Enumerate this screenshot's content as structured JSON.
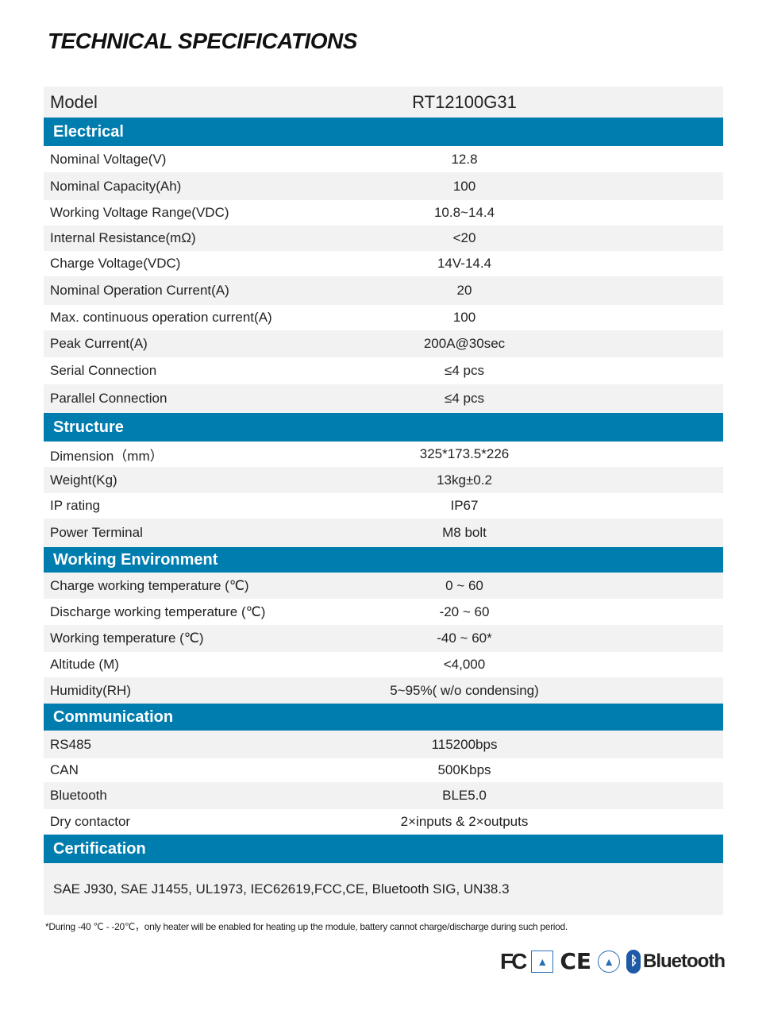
{
  "title": "TECHNICAL SPECIFICATIONS",
  "model": {
    "label": "Model",
    "value": "RT12100G31"
  },
  "sections": {
    "electrical": {
      "title": "Electrical",
      "rows": [
        {
          "label": "Nominal Voltage(V)",
          "value": "12.8"
        },
        {
          "label": "Nominal Capacity(Ah)",
          "value": "100"
        },
        {
          "label": "Working Voltage Range(VDC)",
          "value": "10.8~14.4"
        },
        {
          "label": "Internal Resistance(mΩ)",
          "value": "<20"
        },
        {
          "label": "Charge Voltage(VDC)",
          "value": "14V-14.4"
        },
        {
          "label": "Nominal Operation Current(A)",
          "value": "20"
        },
        {
          "label": "Max. continuous operation  current(A)",
          "value": "100"
        },
        {
          "label": "Peak Current(A)",
          "value": "200A@30sec"
        },
        {
          "label": "Serial Connection",
          "value": "≤4 pcs"
        },
        {
          "label": "Parallel Connection",
          "value": "≤4 pcs"
        }
      ]
    },
    "structure": {
      "title": "Structure",
      "rows": [
        {
          "label": "Dimension（mm）",
          "value": "325*173.5*226"
        },
        {
          "label": "Weight(Kg)",
          "value": "13kg±0.2"
        },
        {
          "label": "IP rating",
          "value": "IP67"
        },
        {
          "label": "Power Terminal",
          "value": "M8 bolt"
        }
      ]
    },
    "environment": {
      "title": "Working Environment",
      "rows": [
        {
          "label": "Charge working temperature (℃)",
          "value": "0 ~ 60"
        },
        {
          "label": "Discharge working temperature (℃)",
          "value": "-20 ~ 60"
        },
        {
          "label": "Working temperature (℃)",
          "value": "-40 ~ 60*"
        },
        {
          "label": "Altitude (M)",
          "value": "<4,000"
        },
        {
          "label": "Humidity(RH)",
          "value": "5~95%( w/o condensing)"
        }
      ]
    },
    "communication": {
      "title": "Communication",
      "rows": [
        {
          "label": "RS485",
          "value": "115200bps"
        },
        {
          "label": "CAN",
          "value": "500Kbps"
        },
        {
          "label": "Bluetooth",
          "value": "BLE5.0"
        },
        {
          "label": "Dry contactor",
          "value": "2×inputs & 2×outputs"
        }
      ]
    },
    "certification": {
      "title": "Certification",
      "text": "SAE J930, SAE J1455, UL1973,  IEC62619,FCC,CE,  Bluetooth SIG, UN38.3"
    }
  },
  "note": "*During -40 ℃ - -20℃，only heater will be enabled for heating up the module, battery cannot charge/discharge during such period.",
  "logos": {
    "fc": "FC",
    "ce": "CE",
    "bluetooth": "Bluetooth",
    "bt_symbol": "ᛒ"
  },
  "colors": {
    "section": "#007daf",
    "row_alt": "#f2f2f2"
  }
}
